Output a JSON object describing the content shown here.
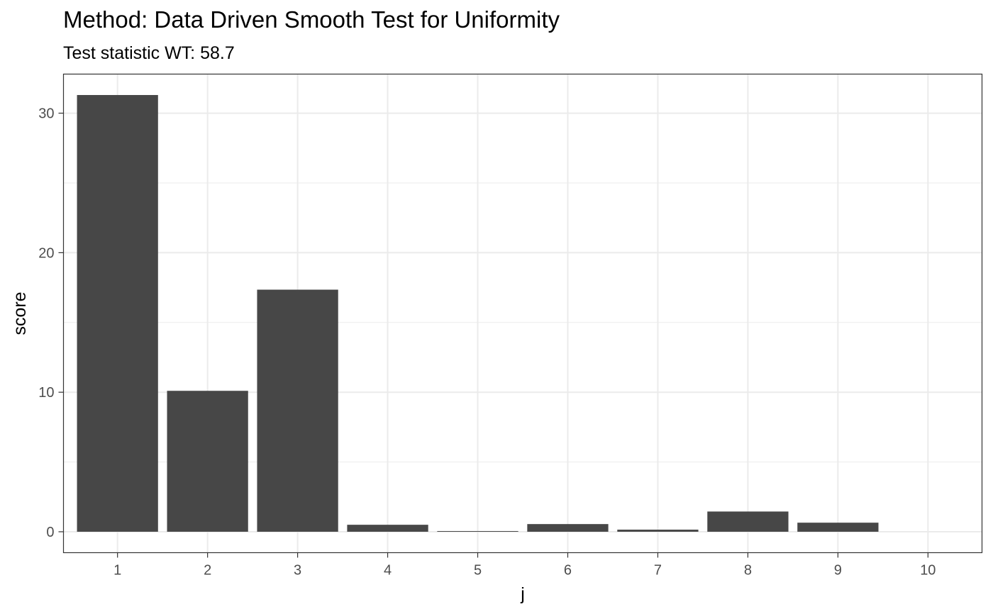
{
  "chart_data": {
    "type": "bar",
    "title": "Method: Data Driven Smooth Test for Uniformity",
    "subtitle": "Test statistic WT: 58.7",
    "xlabel": "j",
    "ylabel": "score",
    "categories": [
      "1",
      "2",
      "3",
      "4",
      "5",
      "6",
      "7",
      "8",
      "9",
      "10"
    ],
    "values": [
      31.3,
      10.1,
      17.35,
      0.5,
      0.05,
      0.55,
      0.15,
      1.45,
      0.65,
      0
    ],
    "ylim": [
      -1.5,
      32.8
    ],
    "yticks": [
      0,
      10,
      20,
      30
    ],
    "grid": true,
    "legend": "none",
    "bar_color": "#474747",
    "grid_color": "#ebebeb",
    "panel_border_color": "#333333"
  }
}
